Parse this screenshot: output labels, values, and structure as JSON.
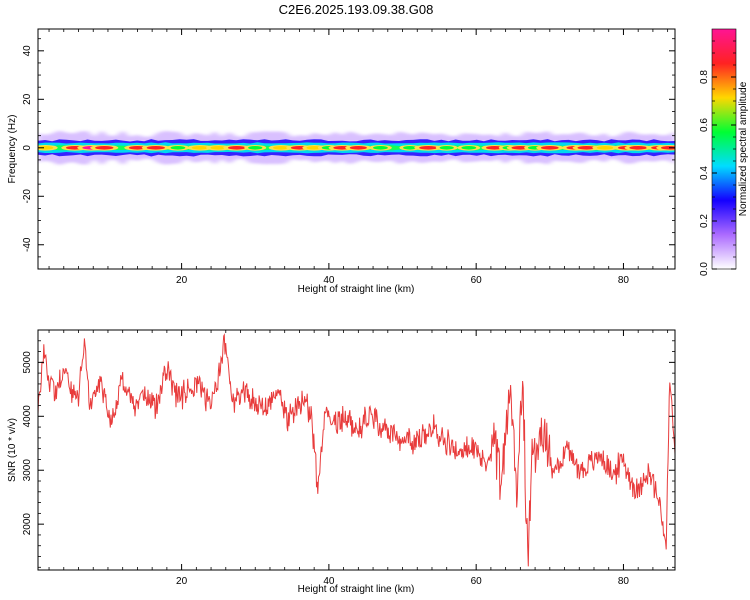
{
  "chart_data": [
    {
      "type": "heatmap",
      "title": "C2E6.2025.193.09.38.G08",
      "xlabel": "Height of straight line (km)",
      "ylabel": "Frequency (Hz)",
      "xlim": [
        0.5,
        87
      ],
      "ylim": [
        -50,
        49
      ],
      "xticks": [
        20,
        40,
        60,
        80
      ],
      "yticks": [
        -40,
        -20,
        0,
        20,
        40
      ],
      "ytick_labels": [
        "-40",
        "-20",
        "0",
        "20",
        "40"
      ],
      "colorbar": {
        "label": "Normalized spectral amplitude",
        "range": [
          0.0,
          1.0
        ],
        "ticks": [
          0.0,
          0.2,
          0.4,
          0.6,
          0.8
        ],
        "tick_labels": [
          "0.0",
          "0.2",
          "0.4",
          "0.6",
          "0.8"
        ],
        "colormap": [
          "#ffffff",
          "#ac6bff",
          "#1400ff",
          "#00ddff",
          "#00ff33",
          "#ffd700",
          "#ff2222",
          "#ff1493"
        ]
      },
      "band_center_hz": 0,
      "band_halfwidth_hz": [
        1.5,
        7
      ],
      "peak_centers_km": [
        1.5,
        5.5,
        7.8,
        9.5,
        14.0,
        16.5,
        19.5,
        22.5,
        25.0,
        27.5,
        30.0,
        33.5,
        36.0,
        38.0,
        40.0,
        41.8,
        44.0,
        47.0,
        51.0,
        53.5,
        56.0,
        59.0,
        62.5,
        64.5,
        66.0,
        68.0,
        70.0,
        73.5,
        75.0,
        77.5,
        80.5,
        82.0,
        85.0,
        86.3
      ],
      "peak_amplitudes": [
        0.7,
        0.85,
        0.95,
        0.9,
        0.8,
        0.9,
        0.6,
        0.75,
        0.7,
        0.85,
        0.55,
        0.7,
        0.8,
        0.65,
        0.55,
        0.85,
        0.8,
        0.6,
        0.5,
        0.9,
        0.55,
        0.6,
        0.8,
        0.5,
        0.85,
        0.55,
        0.85,
        0.9,
        0.9,
        0.75,
        0.9,
        0.85,
        0.9,
        0.85
      ]
    },
    {
      "type": "line",
      "xlabel": "Height of straight line (km)",
      "ylabel": "SNR (10 * v/v)",
      "xlim": [
        0.5,
        87
      ],
      "ylim": [
        1150,
        5600
      ],
      "xticks": [
        20,
        40,
        60,
        80
      ],
      "yticks": [
        2000,
        3000,
        4000,
        5000
      ],
      "series": [
        {
          "color": "#e83c3c",
          "x": [
            0.5,
            1.2,
            2,
            3,
            4,
            5,
            6,
            6.8,
            7.5,
            9,
            10.5,
            12,
            13.5,
            15,
            16.5,
            18,
            19.5,
            21,
            22.5,
            24,
            25,
            25.8,
            27,
            28.5,
            30,
            31.5,
            33,
            34.5,
            36,
            37.5,
            38.5,
            39.5,
            41,
            42.5,
            44,
            45.5,
            47,
            48.5,
            50,
            51.5,
            53,
            54.5,
            56,
            57.5,
            59,
            60.5,
            61.5,
            62.5,
            63.5,
            64.5,
            65.5,
            66.3,
            67,
            67.5,
            68.5,
            69.5,
            70.5,
            71.5,
            72.5,
            74,
            75.5,
            77,
            78.5,
            80,
            81,
            82,
            83,
            84,
            85,
            85.8,
            86.3,
            87
          ],
          "y": [
            4000,
            5200,
            4700,
            4400,
            4900,
            4500,
            4300,
            5400,
            4200,
            4600,
            3900,
            4700,
            4100,
            4400,
            4200,
            4900,
            4300,
            4500,
            4600,
            4100,
            4700,
            5400,
            4300,
            4500,
            4200,
            4100,
            4600,
            3900,
            4300,
            4100,
            2650,
            4200,
            3900,
            4000,
            3700,
            4100,
            3800,
            3700,
            3600,
            3500,
            3650,
            3800,
            3500,
            3300,
            3400,
            3300,
            3100,
            3700,
            2700,
            4600,
            2600,
            4800,
            1350,
            3200,
            3600,
            3500,
            3000,
            3200,
            3400,
            3000,
            3100,
            3300,
            2900,
            3200,
            2800,
            2600,
            3000,
            2800,
            2300,
            1600,
            4700,
            3300
          ]
        }
      ]
    }
  ]
}
